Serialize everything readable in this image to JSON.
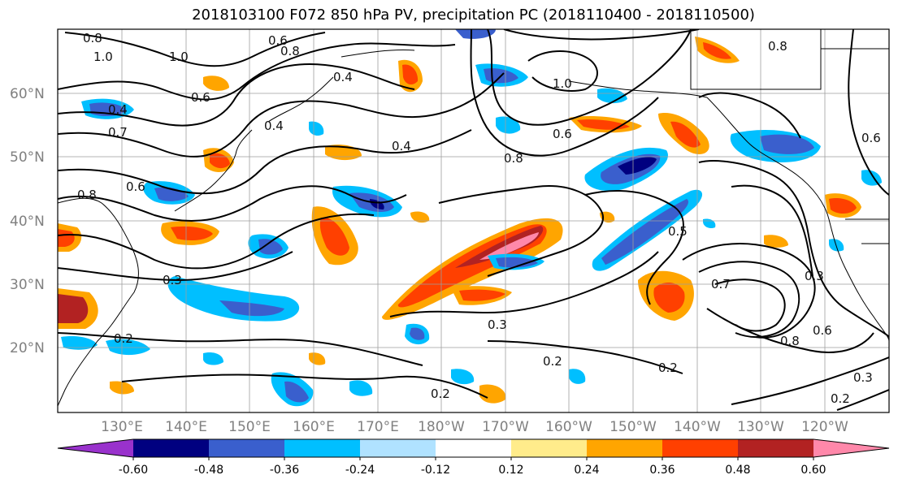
{
  "title": "2018103100 F072 850 hPa PV, precipitation PC (2018110400 - 2018110500)",
  "lat_labels": [
    "60°N",
    "50°N",
    "40°N",
    "30°N",
    "20°N"
  ],
  "lon_labels": [
    "130°E",
    "140°E",
    "150°E",
    "160°E",
    "170°E",
    "180°W",
    "170°W",
    "160°W",
    "150°W",
    "140°W",
    "130°W",
    "120°W"
  ],
  "colorbar": {
    "colors": [
      "#9932cc",
      "#000080",
      "#3a5fcd",
      "#00bfff",
      "#b0e2ff",
      "#ffffff",
      "#ffec8b",
      "#ffa500",
      "#ff4000",
      "#b22222",
      "#ff88aa"
    ],
    "tick_labels": [
      "-0.60",
      "-0.48",
      "-0.36",
      "-0.24",
      "-0.12",
      "0.12",
      "0.24",
      "0.36",
      "0.48",
      "0.60"
    ]
  },
  "contour_labels": [
    "0.8",
    "1.0",
    "0.6",
    "0.8",
    "1.0",
    "0.4",
    "0.7",
    "0.6",
    "0.4",
    "0.8",
    "0.6",
    "0.4",
    "1.0",
    "0.8",
    "0.6",
    "0.5",
    "0.3",
    "0.2",
    "0.2",
    "0.3",
    "0.2",
    "0.2",
    "0.7",
    "0.8",
    "0.6",
    "0.3",
    "0.2",
    "0.3",
    "0.4",
    "0.8",
    "0.6"
  ]
}
